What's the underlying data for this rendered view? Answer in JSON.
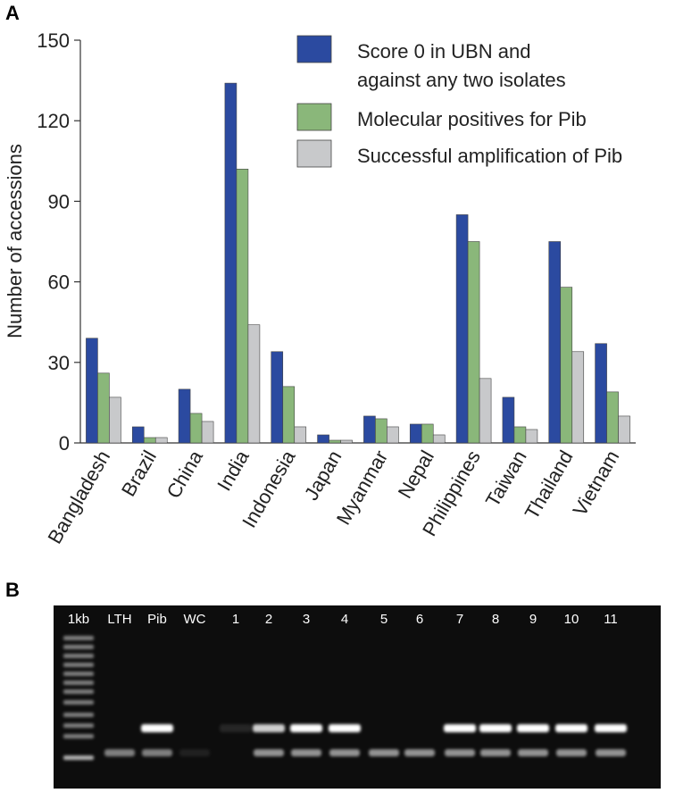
{
  "panel_a_label": "A",
  "chart_data": {
    "type": "bar",
    "y_label": "Number of accessions",
    "categories": [
      "Bangladesh",
      "Brazil",
      "China",
      "India",
      "Indonesia",
      "Japan",
      "Myanmar",
      "Nepal",
      "Philippines",
      "Taiwan",
      "Thailand",
      "Vietnam"
    ],
    "series": [
      {
        "name": "Score 0 in UBN and against any two isolates",
        "color": "#2b4aa0",
        "values": [
          39,
          6,
          20,
          134,
          34,
          3,
          10,
          7,
          85,
          17,
          75,
          37
        ]
      },
      {
        "name": "Molecular positives for Pib",
        "color": "#8ab77a",
        "values": [
          26,
          2,
          11,
          102,
          21,
          1,
          9,
          7,
          75,
          6,
          58,
          19
        ]
      },
      {
        "name": "Successful amplification of Pib",
        "color": "#c8c9cb",
        "values": [
          17,
          2,
          8,
          44,
          6,
          1,
          6,
          3,
          24,
          5,
          34,
          10
        ]
      }
    ],
    "ylim": [
      0,
      150
    ],
    "yticks": [
      0,
      30,
      60,
      90,
      120,
      150
    ],
    "grid": false,
    "legend": "upper right"
  },
  "gel": {
    "label": "B",
    "lanes": [
      "1kb",
      "LTH",
      "Pib",
      "WC",
      "1",
      "2",
      "3",
      "4",
      "5",
      "6",
      "7",
      "8",
      "9",
      "10",
      "11"
    ]
  }
}
